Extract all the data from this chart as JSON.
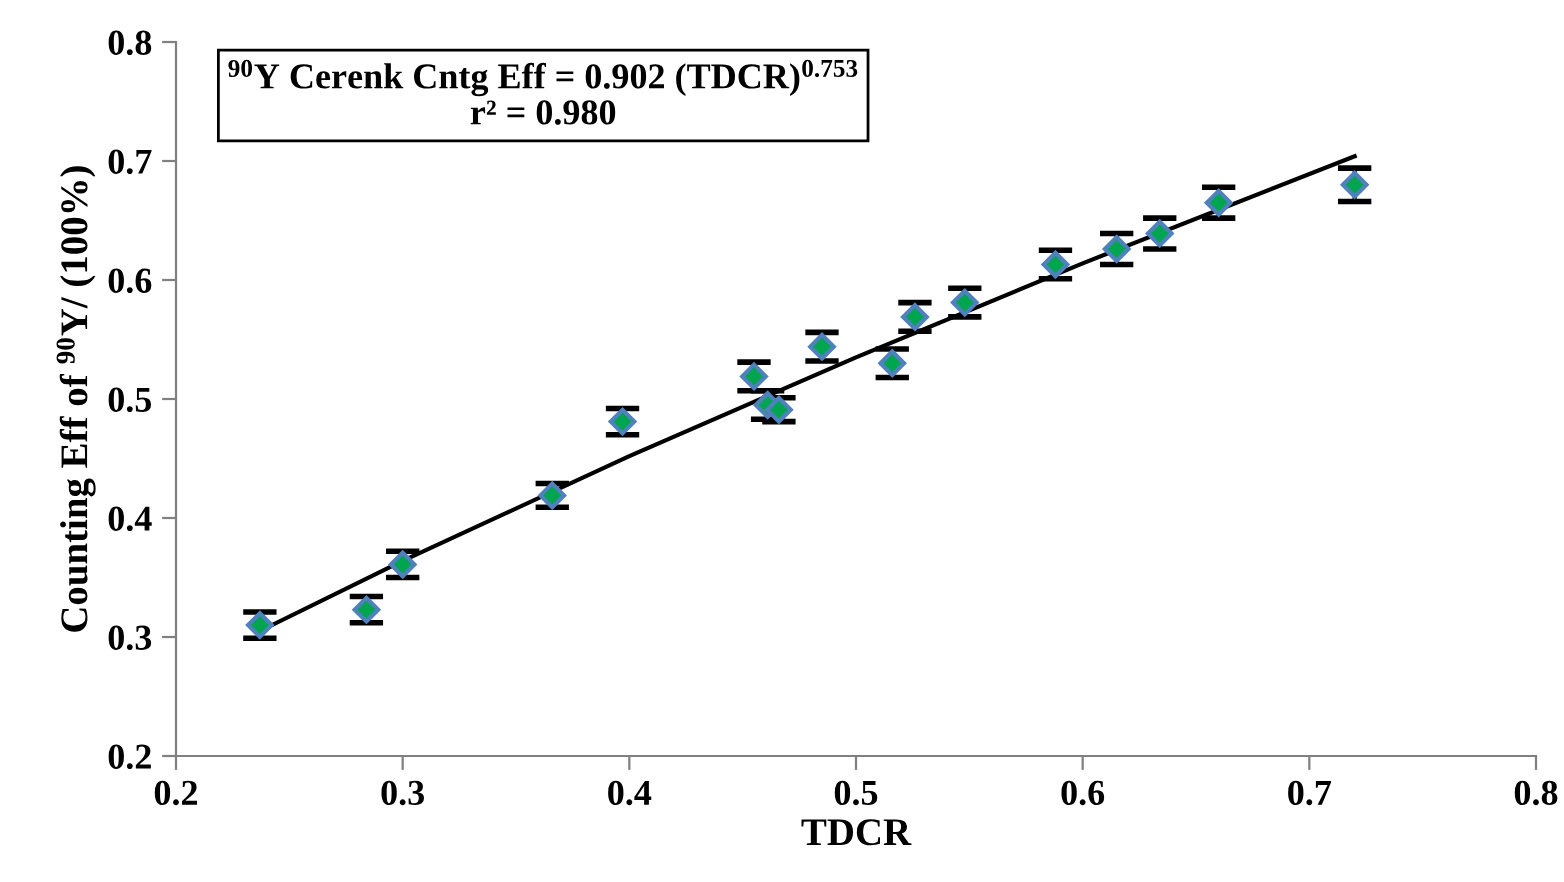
{
  "chart_data": {
    "type": "scatter",
    "xlabel": "TDCR",
    "ylabel": "Counting Eff of $^{90}$Y/ (100%)",
    "annotations": [
      "$^{90}$Y Cerenk Cntg Eff = 0.902 (TDCR)$^{0.753}$",
      "r² = 0.980"
    ],
    "xlim": [
      0.2,
      0.8
    ],
    "ylim": [
      0.2,
      0.8
    ],
    "xticks": [
      0.2,
      0.3,
      0.4,
      0.5,
      0.6,
      0.7,
      0.8
    ],
    "yticks": [
      0.2,
      0.3,
      0.4,
      0.5,
      0.6,
      0.7,
      0.8
    ],
    "grid": false,
    "legend": false,
    "series": [
      {
        "color": "#00a550",
        "marker": "diamond",
        "x": [
          0.237,
          0.284,
          0.3,
          0.366,
          0.397,
          0.455,
          0.461,
          0.466,
          0.485,
          0.516,
          0.526,
          0.548,
          0.588,
          0.615,
          0.634,
          0.66,
          0.72
        ],
        "values": [
          0.31,
          0.323,
          0.361,
          0.419,
          0.481,
          0.519,
          0.495,
          0.491,
          0.544,
          0.53,
          0.569,
          0.581,
          0.613,
          0.626,
          0.639,
          0.665,
          0.68
        ],
        "errors": [
          0.011,
          0.011,
          0.011,
          0.01,
          0.011,
          0.012,
          0.012,
          0.01,
          0.012,
          0.012,
          0.012,
          0.012,
          0.012,
          0.013,
          0.013,
          0.013,
          0.014
        ]
      },
      {
        "type": "line",
        "color": "#000000",
        "marker": "none",
        "line_style": "solid",
        "x": [
          0.237,
          0.3,
          0.4,
          0.5,
          0.6,
          0.72
        ],
        "values": [
          0.305,
          0.364,
          0.452,
          0.535,
          0.614,
          0.704
        ]
      }
    ]
  }
}
